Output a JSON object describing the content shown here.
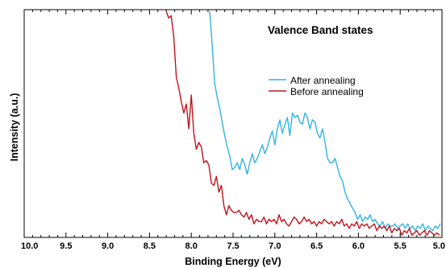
{
  "chart_data": {
    "type": "line",
    "title": "Valence Band states",
    "xlabel": "Binding Energy (eV)",
    "ylabel": "Intensity (a.u.)",
    "xlim": [
      10.0,
      5.0
    ],
    "ylim": [
      0,
      100
    ],
    "x_reversed": true,
    "grid": false,
    "legend_position": "top-right",
    "x_ticks": [
      "10.0",
      "9.5",
      "9.0",
      "8.5",
      "8.0",
      "7.5",
      "7.0",
      "6.5",
      "6.0",
      "5.5",
      "5.0"
    ],
    "x_tick_values": [
      10.0,
      9.5,
      9.0,
      8.5,
      8.0,
      7.5,
      7.0,
      6.5,
      6.0,
      5.5,
      5.0
    ],
    "series": [
      {
        "name": "After annealing",
        "color": "#33b3e0",
        "x": [
          7.78,
          7.75,
          7.72,
          7.69,
          7.66,
          7.63,
          7.6,
          7.57,
          7.54,
          7.51,
          7.48,
          7.45,
          7.42,
          7.39,
          7.36,
          7.33,
          7.3,
          7.27,
          7.24,
          7.21,
          7.18,
          7.15,
          7.12,
          7.09,
          7.06,
          7.03,
          7.0,
          6.97,
          6.94,
          6.91,
          6.88,
          6.85,
          6.82,
          6.79,
          6.76,
          6.73,
          6.7,
          6.67,
          6.64,
          6.61,
          6.58,
          6.55,
          6.52,
          6.49,
          6.46,
          6.43,
          6.4,
          6.37,
          6.34,
          6.31,
          6.28,
          6.25,
          6.22,
          6.19,
          6.16,
          6.13,
          6.1,
          6.07,
          6.04,
          6.01,
          5.98,
          5.95,
          5.92,
          5.89,
          5.86,
          5.83,
          5.8,
          5.77,
          5.74,
          5.71,
          5.68,
          5.65,
          5.62,
          5.59,
          5.56,
          5.53,
          5.5,
          5.47,
          5.44,
          5.41,
          5.38,
          5.35,
          5.32,
          5.29,
          5.26,
          5.23,
          5.2,
          5.17,
          5.14,
          5.11,
          5.08,
          5.05,
          5.02
        ],
        "values": [
          100,
          85,
          68,
          62,
          57,
          51,
          45,
          40,
          36,
          30,
          31,
          33,
          30,
          35,
          32,
          28,
          33,
          37,
          33,
          35,
          38,
          41,
          37,
          40,
          44,
          47,
          41,
          48,
          52,
          46,
          50,
          53,
          45,
          55,
          53,
          54,
          51,
          50,
          55,
          53,
          48,
          52,
          51,
          46,
          44,
          48,
          42,
          35,
          33,
          33,
          35,
          31,
          27,
          25,
          20,
          17,
          15,
          13,
          11,
          8,
          10,
          7,
          9,
          8,
          10,
          7,
          8,
          6,
          5,
          7,
          4,
          6,
          5,
          5,
          6,
          4,
          5,
          6,
          4,
          6,
          4,
          5,
          3,
          5,
          4,
          6,
          3,
          5,
          4,
          3,
          5,
          4,
          6
        ]
      },
      {
        "name": "Before annealing",
        "color": "#c0141c",
        "x": [
          8.3,
          8.27,
          8.24,
          8.21,
          8.18,
          8.15,
          8.12,
          8.09,
          8.06,
          8.03,
          8.0,
          7.97,
          7.94,
          7.91,
          7.88,
          7.85,
          7.82,
          7.79,
          7.76,
          7.73,
          7.7,
          7.67,
          7.64,
          7.61,
          7.58,
          7.55,
          7.52,
          7.49,
          7.46,
          7.43,
          7.4,
          7.37,
          7.34,
          7.31,
          7.28,
          7.25,
          7.22,
          7.19,
          7.16,
          7.13,
          7.1,
          7.07,
          7.04,
          7.01,
          6.98,
          6.95,
          6.92,
          6.89,
          6.86,
          6.83,
          6.8,
          6.77,
          6.74,
          6.71,
          6.68,
          6.65,
          6.62,
          6.59,
          6.56,
          6.53,
          6.5,
          6.47,
          6.44,
          6.41,
          6.38,
          6.35,
          6.32,
          6.29,
          6.26,
          6.23,
          6.2,
          6.17,
          6.14,
          6.11,
          6.08,
          6.05,
          6.02,
          5.99,
          5.96,
          5.93,
          5.9,
          5.87,
          5.84,
          5.81,
          5.78,
          5.75,
          5.72,
          5.69,
          5.66,
          5.63,
          5.6,
          5.57,
          5.54,
          5.51,
          5.48,
          5.45,
          5.42,
          5.39,
          5.36,
          5.33,
          5.3,
          5.27,
          5.24,
          5.21,
          5.18,
          5.15,
          5.12,
          5.09,
          5.06,
          5.03
        ],
        "values": [
          100,
          97,
          98,
          89,
          71,
          66,
          60,
          55,
          59,
          48,
          63,
          46,
          39,
          42,
          40,
          33,
          34,
          32,
          24,
          23,
          27,
          20,
          23,
          14,
          10,
          14,
          12,
          11,
          11,
          12,
          10,
          9,
          11,
          8,
          10,
          6,
          8,
          7,
          7,
          9,
          6,
          8,
          7,
          8,
          6,
          10,
          7,
          8,
          6,
          5,
          7,
          9,
          8,
          6,
          7,
          9,
          7,
          8,
          6,
          7,
          5,
          7,
          6,
          8,
          7,
          6,
          7,
          5,
          7,
          6,
          8,
          5,
          6,
          4,
          6,
          5,
          7,
          4,
          6,
          5,
          6,
          4,
          5,
          6,
          3,
          5,
          4,
          5,
          3,
          5,
          2,
          4,
          3,
          4,
          1,
          3,
          2,
          4,
          1,
          2,
          3,
          1,
          2,
          3,
          1,
          3,
          2,
          1,
          2,
          1
        ]
      }
    ]
  }
}
